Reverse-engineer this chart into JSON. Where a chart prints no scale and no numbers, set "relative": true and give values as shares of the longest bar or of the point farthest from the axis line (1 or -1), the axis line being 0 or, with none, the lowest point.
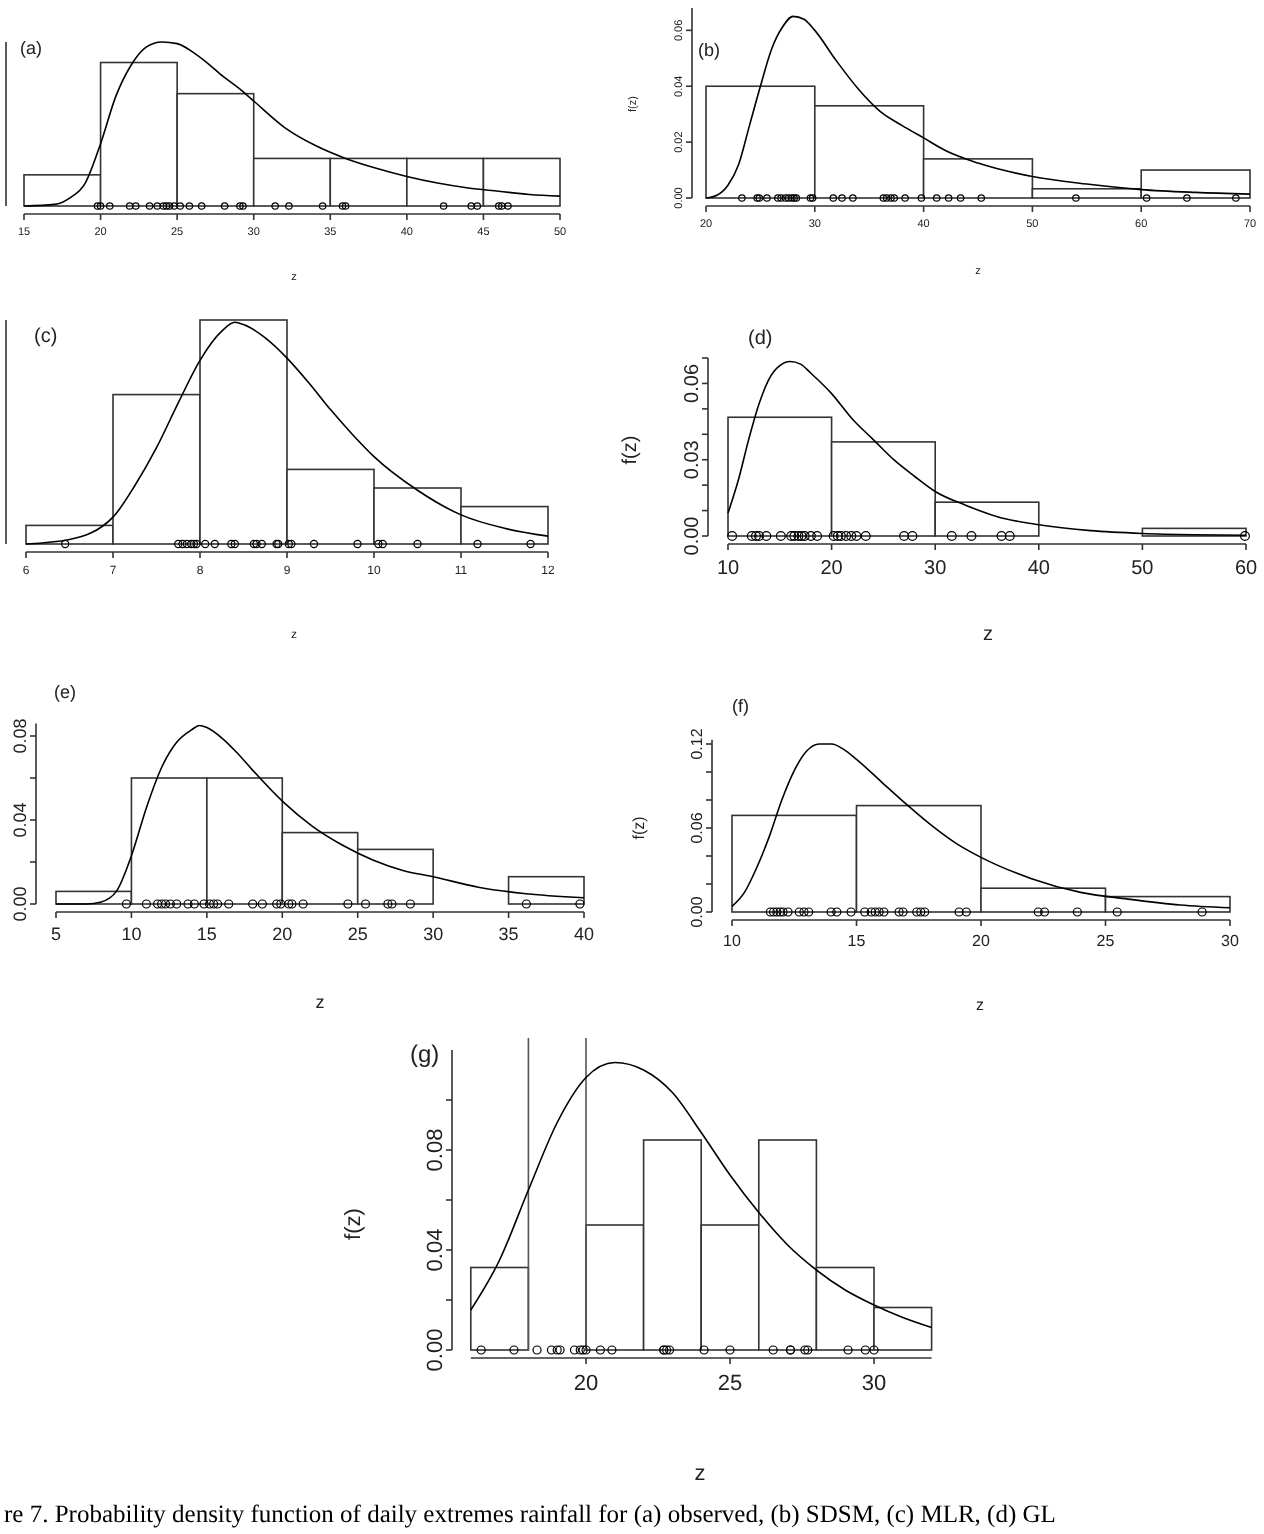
{
  "chart_data": [
    {
      "type": "histogram",
      "title": "(a)",
      "xlabel": "z",
      "relative": true,
      "tick_labels": "x",
      "color": "#ffffff",
      "xlim": [
        15,
        50
      ],
      "xticks": [
        15,
        20,
        25,
        30,
        35,
        40,
        45,
        50
      ],
      "bins": [
        15,
        20,
        25,
        30,
        35,
        40,
        45,
        50
      ],
      "values": [
        0.19,
        0.875,
        0.685,
        0.29,
        0.29,
        0.29,
        0.29
      ],
      "series": [
        {
          "type": "line",
          "color": "#000000",
          "x": [
            15,
            17,
            18,
            19,
            20,
            21,
            22,
            23,
            24,
            25,
            26,
            27,
            28,
            29,
            30,
            32,
            34,
            36,
            38,
            40,
            42,
            44,
            46,
            48,
            50
          ],
          "values": [
            0,
            0.01,
            0.05,
            0.14,
            0.38,
            0.67,
            0.86,
            0.97,
            1,
            0.99,
            0.94,
            0.87,
            0.79,
            0.72,
            0.64,
            0.48,
            0.37,
            0.29,
            0.23,
            0.18,
            0.14,
            0.11,
            0.09,
            0.07,
            0.06
          ]
        },
        {
          "type": "scatter",
          "marker": "circle",
          "color": "#000000",
          "x": [
            19.8,
            20.0,
            20.6,
            21.9,
            22.3,
            23.2,
            23.7,
            24.1,
            24.3,
            24.5,
            24.8,
            25.2,
            25.8,
            26.6,
            28.1,
            29.1,
            29.3,
            31.4,
            32.3,
            34.5,
            35.8,
            36.0,
            42.4,
            44.2,
            44.6,
            46.0,
            46.2,
            46.6
          ],
          "values": [
            0,
            0,
            0,
            0,
            0,
            0,
            0,
            0,
            0,
            0,
            0,
            0,
            0,
            0,
            0,
            0,
            0,
            0,
            0,
            0,
            0,
            0,
            0,
            0,
            0,
            0,
            0,
            0
          ]
        }
      ]
    },
    {
      "type": "histogram",
      "title": "(b)",
      "xlabel": "z",
      "ylabel": "f(z)",
      "color": "#ffffff",
      "xlim": [
        20,
        70
      ],
      "xticks": [
        20,
        30,
        40,
        50,
        60,
        70
      ],
      "ylim": [
        0,
        0.068
      ],
      "yticks": [
        {
          "value": 0,
          "label": "0.00"
        },
        {
          "value": 0.02,
          "label": "0.02"
        },
        {
          "value": 0.04,
          "label": "0.04"
        },
        {
          "value": 0.06,
          "label": "0.06"
        }
      ],
      "bins": [
        20,
        30,
        40,
        50,
        60,
        70
      ],
      "values": [
        0.04,
        0.033,
        0.014,
        0.0033,
        0.01
      ],
      "series": [
        {
          "type": "line",
          "color": "#000000",
          "x": [
            20,
            21,
            22,
            23,
            24,
            25,
            26,
            27,
            28,
            29,
            30,
            32,
            34,
            36,
            38,
            40,
            42,
            45,
            50,
            55,
            60,
            65,
            70
          ],
          "values": [
            0,
            0.001,
            0.0045,
            0.012,
            0.026,
            0.04,
            0.053,
            0.061,
            0.065,
            0.064,
            0.06,
            0.049,
            0.039,
            0.031,
            0.026,
            0.0215,
            0.017,
            0.0125,
            0.0077,
            0.005,
            0.003,
            0.002,
            0.0014
          ]
        },
        {
          "type": "scatter",
          "marker": "circle",
          "color": "#000000",
          "x": [
            23.3,
            24.7,
            24.9,
            25.6,
            26.6,
            26.9,
            27.3,
            27.6,
            27.9,
            28.1,
            28.3,
            29.6,
            29.8,
            31.7,
            32.5,
            33.5,
            36.3,
            36.6,
            37.0,
            37.3,
            38.3,
            39.8,
            41.2,
            42.3,
            43.4,
            45.3,
            54.0,
            60.5,
            64.2,
            68.7
          ],
          "values": [
            0,
            0,
            0,
            0,
            0,
            0,
            0,
            0,
            0,
            0,
            0,
            0,
            0,
            0,
            0,
            0,
            0,
            0,
            0,
            0,
            0,
            0,
            0,
            0,
            0,
            0,
            0,
            0,
            0,
            0
          ]
        }
      ]
    },
    {
      "type": "histogram",
      "title": "(c)",
      "xlabel": "z",
      "relative": true,
      "tick_labels": "x",
      "color": "#ffffff",
      "xlim": [
        6,
        12
      ],
      "xticks": [
        6,
        7,
        8,
        9,
        10,
        11,
        12
      ],
      "bins": [
        6,
        7,
        8,
        9,
        10,
        11,
        12
      ],
      "values": [
        0.083,
        0.667,
        1,
        0.333,
        0.25,
        0.167
      ],
      "series": [
        {
          "type": "line",
          "color": "#000000",
          "x": [
            6,
            6.5,
            7,
            7.25,
            7.5,
            7.75,
            8,
            8.25,
            8.4,
            8.5,
            8.75,
            9,
            9.25,
            9.5,
            9.75,
            10,
            10.5,
            11,
            11.5,
            12
          ],
          "values": [
            0,
            0.02,
            0.12,
            0.26,
            0.43,
            0.63,
            0.82,
            0.95,
            0.99,
            0.98,
            0.92,
            0.83,
            0.72,
            0.6,
            0.49,
            0.39,
            0.24,
            0.13,
            0.07,
            0.035
          ]
        },
        {
          "type": "scatter",
          "marker": "circle",
          "color": "#000000",
          "x": [
            6.45,
            7.75,
            7.8,
            7.85,
            7.9,
            7.93,
            7.96,
            8.06,
            8.17,
            8.36,
            8.4,
            8.62,
            8.65,
            8.71,
            8.88,
            8.9,
            9.02,
            9.05,
            9.31,
            9.81,
            10.05,
            10.1,
            10.5,
            11.19,
            11.8
          ],
          "values": [
            0,
            0,
            0,
            0,
            0,
            0,
            0,
            0,
            0,
            0,
            0,
            0,
            0,
            0,
            0,
            0,
            0,
            0,
            0,
            0,
            0,
            0,
            0,
            0,
            0
          ]
        }
      ]
    },
    {
      "type": "histogram",
      "title": "(d)",
      "xlabel": "z",
      "ylabel": "f(z)",
      "color": "#ffffff",
      "xlim": [
        10,
        60
      ],
      "xticks": [
        10,
        20,
        30,
        40,
        50,
        60
      ],
      "ylim": [
        0,
        0.07
      ],
      "yticks": [
        {
          "value": 0,
          "label": "0.00"
        },
        {
          "value": 0.01,
          "label": null
        },
        {
          "value": 0.02,
          "label": null
        },
        {
          "value": 0.03,
          "label": "0.03"
        },
        {
          "value": 0.04,
          "label": null
        },
        {
          "value": 0.05,
          "label": null
        },
        {
          "value": 0.06,
          "label": "0.06"
        },
        {
          "value": 0.07,
          "label": null
        }
      ],
      "bins": [
        10,
        20,
        30,
        40,
        50,
        60
      ],
      "values": [
        0.0467,
        0.037,
        0.0133,
        0,
        0.003
      ],
      "series": [
        {
          "type": "line",
          "color": "#000000",
          "x": [
            10,
            11,
            12,
            13,
            14,
            15,
            16,
            17,
            18,
            20,
            22,
            24,
            26,
            28,
            30,
            33,
            36,
            40,
            45,
            50,
            55,
            60
          ],
          "values": [
            0.009,
            0.022,
            0.038,
            0.052,
            0.062,
            0.067,
            0.0686,
            0.0676,
            0.064,
            0.056,
            0.046,
            0.038,
            0.03,
            0.0235,
            0.0175,
            0.012,
            0.0076,
            0.0044,
            0.0021,
            0.001,
            0.0005,
            0.0003
          ]
        },
        {
          "type": "scatter",
          "marker": "circle",
          "color": "#000000",
          "x": [
            10.4,
            12.3,
            12.7,
            13.0,
            13.7,
            15.1,
            16.1,
            16.4,
            16.8,
            17.1,
            17.4,
            18.0,
            18.6,
            20.2,
            20.6,
            20.9,
            21.4,
            21.9,
            22.4,
            23.3,
            27.0,
            27.8,
            31.6,
            33.5,
            36.4,
            37.2,
            59.9
          ],
          "values": [
            0,
            0,
            0,
            0,
            0,
            0,
            0,
            0,
            0,
            0,
            0,
            0,
            0,
            0,
            0,
            0,
            0,
            0,
            0,
            0,
            0,
            0,
            0,
            0,
            0,
            0,
            0
          ]
        }
      ]
    },
    {
      "type": "histogram",
      "title": "(e)",
      "xlabel": "z",
      "color": "#ffffff",
      "xlim": [
        5,
        40
      ],
      "xticks": [
        5,
        10,
        15,
        20,
        25,
        30,
        35,
        40
      ],
      "ylim": [
        0,
        0.086
      ],
      "yticks": [
        {
          "value": 0,
          "label": "0.00"
        },
        {
          "value": 0.02,
          "label": null
        },
        {
          "value": 0.04,
          "label": "0.04"
        },
        {
          "value": 0.06,
          "label": null
        },
        {
          "value": 0.08,
          "label": "0.08"
        }
      ],
      "bins": [
        5,
        10,
        15,
        20,
        25,
        30,
        35,
        40
      ],
      "values": [
        0.006,
        0.06,
        0.06,
        0.034,
        0.026,
        0,
        0.013
      ],
      "series": [
        {
          "type": "line",
          "color": "#000000",
          "x": [
            5,
            7,
            8,
            9,
            10,
            11,
            12,
            13,
            14,
            14.5,
            15,
            16,
            17,
            18,
            20,
            22,
            24,
            26,
            28,
            30,
            33,
            36,
            40
          ],
          "values": [
            0,
            0,
            0.001,
            0.006,
            0.023,
            0.046,
            0.065,
            0.077,
            0.083,
            0.085,
            0.084,
            0.079,
            0.072,
            0.064,
            0.049,
            0.037,
            0.028,
            0.021,
            0.016,
            0.013,
            0.008,
            0.005,
            0.003
          ]
        },
        {
          "type": "scatter",
          "marker": "circle",
          "color": "#000000",
          "x": [
            9.67,
            10.99,
            11.73,
            12.0,
            12.26,
            12.58,
            13.0,
            13.75,
            14.17,
            14.81,
            15.18,
            15.45,
            15.71,
            16.45,
            18.04,
            18.68,
            19.63,
            19.9,
            20.43,
            20.64,
            21.38,
            24.35,
            25.52,
            27.0,
            27.27,
            28.49,
            36.18,
            39.73
          ],
          "values": [
            0,
            0,
            0,
            0,
            0,
            0,
            0,
            0,
            0,
            0,
            0,
            0,
            0,
            0,
            0,
            0,
            0,
            0,
            0,
            0,
            0,
            0,
            0,
            0,
            0,
            0,
            0,
            0
          ]
        }
      ]
    },
    {
      "type": "histogram",
      "title": "(f)",
      "xlabel": "z",
      "ylabel": "f(z)",
      "color": "#ffffff",
      "xlim": [
        10,
        30
      ],
      "xticks": [
        10,
        15,
        20,
        25,
        30
      ],
      "ylim": [
        0,
        0.123
      ],
      "yticks": [
        {
          "value": 0,
          "label": "0.00"
        },
        {
          "value": 0.02,
          "label": null
        },
        {
          "value": 0.04,
          "label": null
        },
        {
          "value": 0.06,
          "label": "0.06"
        },
        {
          "value": 0.08,
          "label": null
        },
        {
          "value": 0.1,
          "label": null
        },
        {
          "value": 0.12,
          "label": "0.12"
        }
      ],
      "bins": [
        10,
        15,
        20,
        25,
        30
      ],
      "values": [
        0.069,
        0.076,
        0.017,
        0.011
      ],
      "series": [
        {
          "type": "line",
          "color": "#000000",
          "x": [
            10,
            10.5,
            11,
            11.5,
            12,
            12.5,
            13,
            13.5,
            14,
            14.5,
            15,
            16,
            17,
            18,
            19,
            20,
            22,
            24,
            26,
            28,
            30
          ],
          "values": [
            0.004,
            0.014,
            0.032,
            0.054,
            0.08,
            0.101,
            0.115,
            0.12,
            0.12,
            0.116,
            0.109,
            0.093,
            0.077,
            0.062,
            0.049,
            0.039,
            0.024,
            0.014,
            0.009,
            0.005,
            0.003
          ]
        },
        {
          "type": "scatter",
          "marker": "circle",
          "color": "#000000",
          "x": [
            11.54,
            11.67,
            11.8,
            11.93,
            12.05,
            12.25,
            12.7,
            12.89,
            13.08,
            13.98,
            14.21,
            14.78,
            15.33,
            15.59,
            15.75,
            15.91,
            16.1,
            16.71,
            16.87,
            17.42,
            17.58,
            17.74,
            19.12,
            19.41,
            22.3,
            22.55,
            23.87,
            25.47,
            28.88
          ],
          "values": [
            0,
            0,
            0,
            0,
            0,
            0,
            0,
            0,
            0,
            0,
            0,
            0,
            0,
            0,
            0,
            0,
            0,
            0,
            0,
            0,
            0,
            0,
            0,
            0,
            0,
            0,
            0,
            0,
            0
          ]
        }
      ]
    },
    {
      "type": "histogram",
      "title": "(g)",
      "xlabel": "z",
      "ylabel": "f(z)",
      "color": "#ffffff",
      "xlim": [
        16,
        32
      ],
      "xticks": [
        20,
        25,
        30
      ],
      "ylim": [
        0,
        0.12
      ],
      "yticks": [
        {
          "value": 0,
          "label": "0.00"
        },
        {
          "value": 0.02,
          "label": null
        },
        {
          "value": 0.04,
          "label": "0.04"
        },
        {
          "value": 0.06,
          "label": null
        },
        {
          "value": 0.08,
          "label": "0.08"
        },
        {
          "value": 0.1,
          "label": null
        }
      ],
      "bins": [
        16,
        18,
        20,
        22,
        24,
        26,
        28,
        30,
        32
      ],
      "values": [
        0.033,
        null,
        0.05,
        0.084,
        0.05,
        0.084,
        0.033,
        0.017
      ],
      "ref_lines": [
        {
          "axis": "x",
          "value": 18,
          "color": "#555555"
        },
        {
          "axis": "x",
          "value": 20,
          "color": "#555555"
        }
      ],
      "annotations": [
        "re 7. Probability density function of daily extremes rainfall for (a) observed, (b) SDSM, (c) MLR, (d) GL"
      ],
      "series": [
        {
          "type": "line",
          "color": "#000000",
          "x": [
            16,
            17,
            18,
            19,
            20,
            21,
            22,
            23,
            24,
            25,
            26,
            27,
            28,
            29,
            30,
            31,
            32
          ],
          "values": [
            0.016,
            0.036,
            0.064,
            0.091,
            0.109,
            0.115,
            0.112,
            0.103,
            0.087,
            0.07,
            0.055,
            0.042,
            0.032,
            0.024,
            0.018,
            0.013,
            0.009
          ]
        },
        {
          "type": "scatter",
          "marker": "circle",
          "color": "#000000",
          "x": [
            16.36,
            17.5,
            18.3,
            18.8,
            19.0,
            19.1,
            19.6,
            19.8,
            19.9,
            20.0,
            20.5,
            20.9,
            22.7,
            22.7,
            22.8,
            22.9,
            24.1,
            25.0,
            26.5,
            27.1,
            27.1,
            27.6,
            27.7,
            29.1,
            29.7,
            30.0
          ],
          "values": [
            0,
            0,
            0,
            0,
            0,
            0,
            0,
            0,
            0,
            0,
            0,
            0,
            0,
            0,
            0,
            0,
            0,
            0,
            0,
            0,
            0,
            0,
            0,
            0,
            0,
            0
          ]
        }
      ]
    }
  ]
}
